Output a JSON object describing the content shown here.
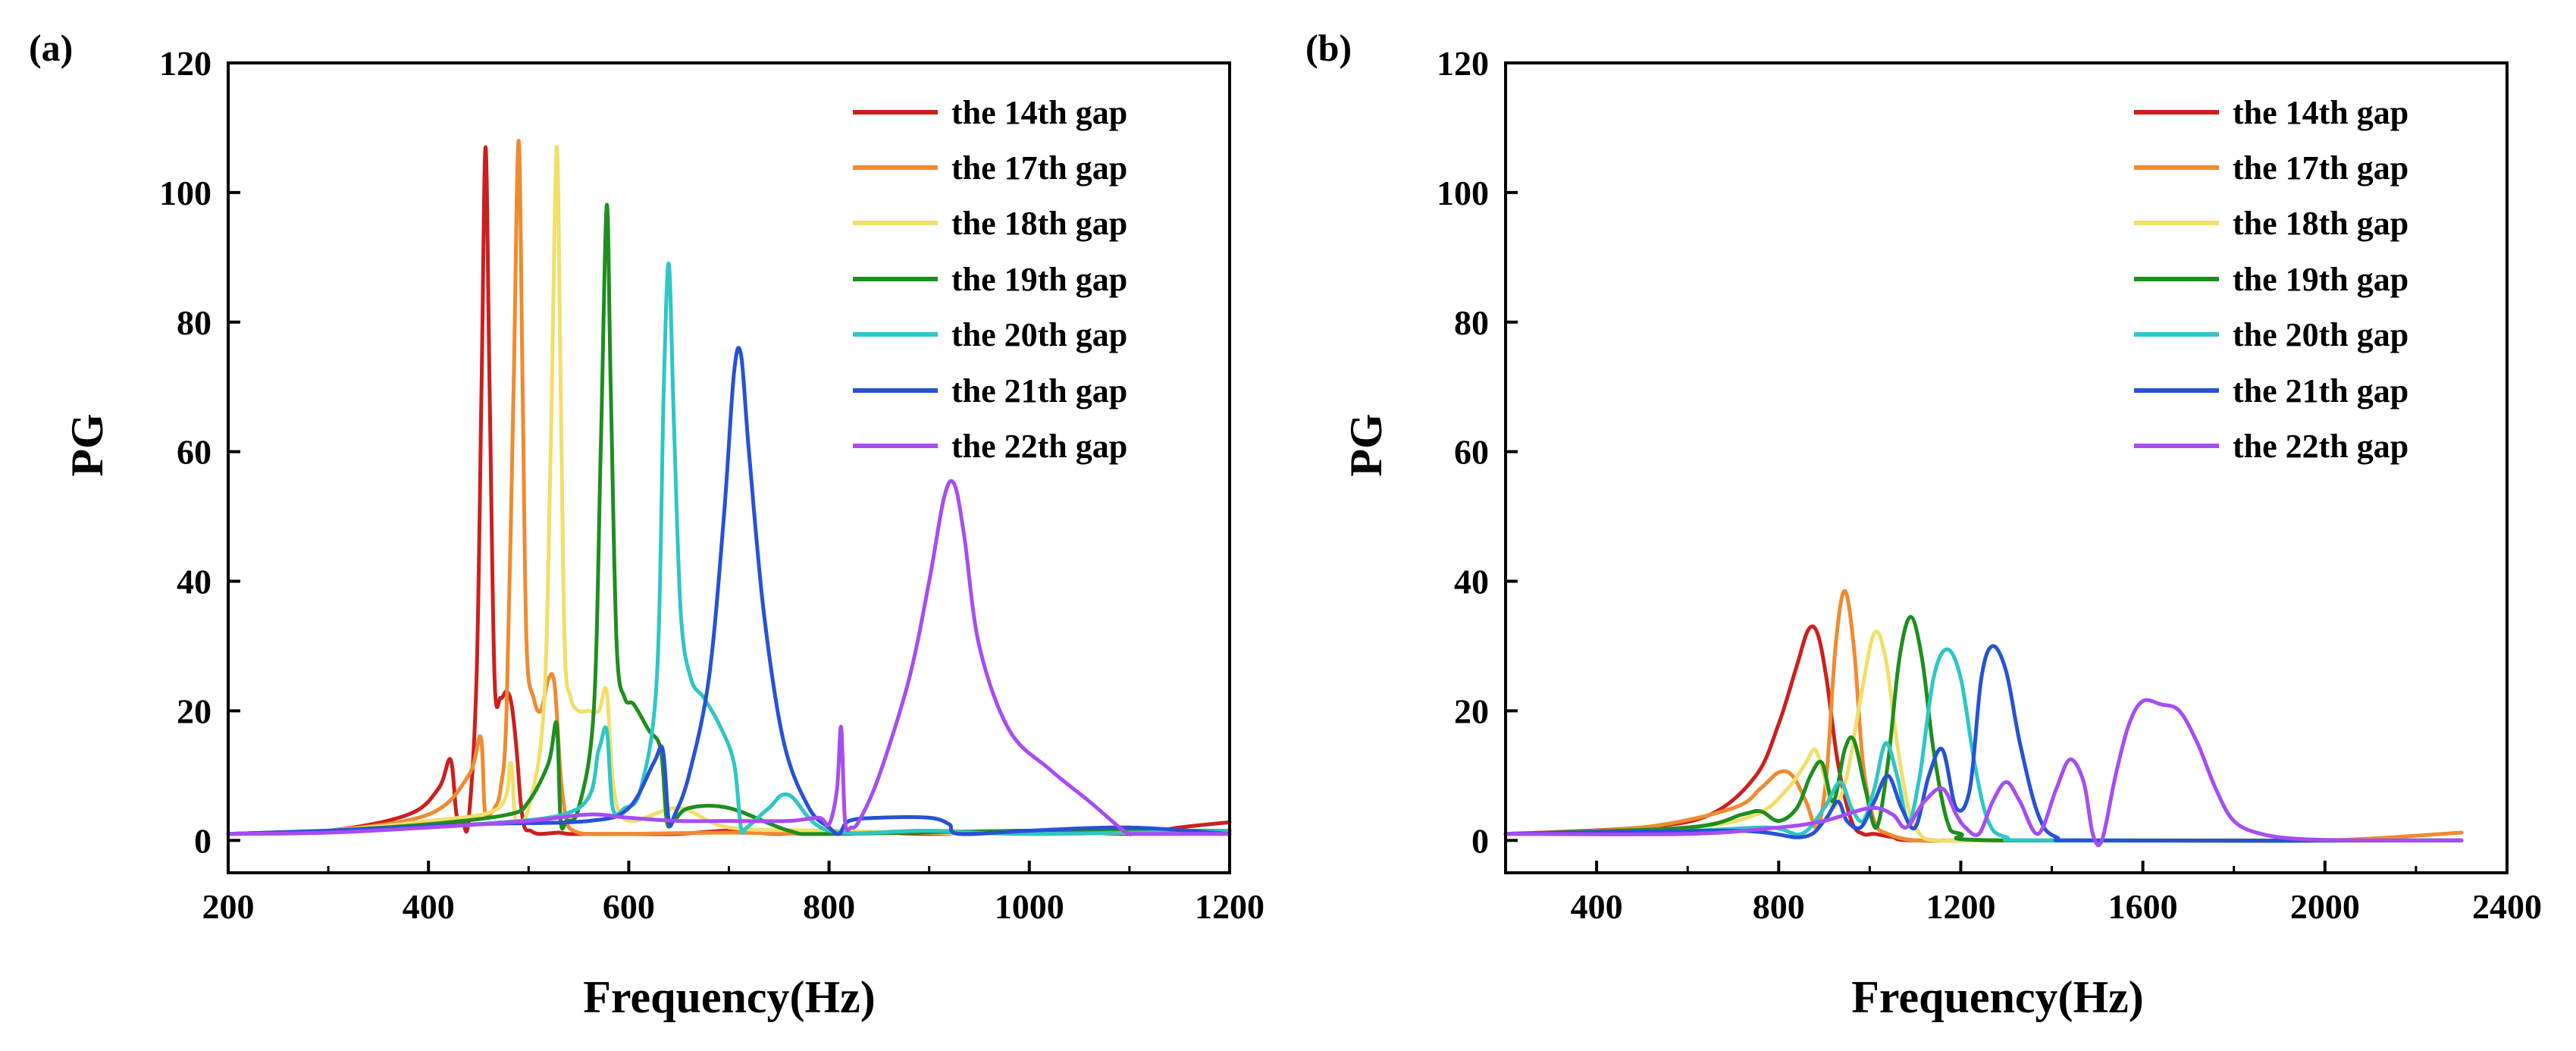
{
  "figure_title": "",
  "chart_data": [
    {
      "type": "line",
      "panel_label": "(a)",
      "xlabel": "Frequency(Hz)",
      "ylabel": "PG",
      "xlim": [
        200,
        1200
      ],
      "ylim": [
        -5,
        120
      ],
      "xticks": [
        200,
        400,
        600,
        800,
        1000,
        1200
      ],
      "xtick_labels": [
        "200",
        "400",
        "600",
        "800",
        "1000",
        "1200"
      ],
      "yticks": [
        0,
        20,
        40,
        60,
        80,
        100,
        120
      ],
      "ytick_labels": [
        "0",
        "20",
        "40",
        "60",
        "80",
        "100",
        "120"
      ],
      "legend_position": "top-right",
      "series": [
        {
          "name": "the 14th gap",
          "color": "#cc1f1f",
          "x": [
            200,
            300,
            380,
            410,
            422,
            428,
            434,
            440,
            448,
            453,
            457,
            461,
            466,
            472,
            478,
            483,
            488,
            492,
            496,
            502,
            510,
            530,
            540,
            560,
            600,
            650,
            700,
            750,
            800,
            900,
            1000,
            1100,
            1150,
            1200
          ],
          "y": [
            1,
            1.5,
            4,
            8,
            12.5,
            4,
            3,
            3,
            25,
            70,
            107,
            70,
            25,
            22,
            23,
            21,
            14,
            6,
            2,
            1.5,
            1,
            1.2,
            1,
            1,
            1,
            1,
            1.5,
            1,
            1.5,
            1,
            1.5,
            1,
            2,
            2.8
          ]
        },
        {
          "name": "the 17th gap",
          "color": "#f08a30",
          "x": [
            200,
            300,
            400,
            440,
            452,
            456,
            460,
            466,
            472,
            478,
            485,
            490,
            494,
            498,
            505,
            512,
            520,
            526,
            532,
            538,
            545,
            560,
            600,
            700,
            800,
            900,
            1000,
            1100,
            1200
          ],
          "y": [
            1,
            1.5,
            4,
            10,
            16,
            5,
            4,
            5,
            8,
            20,
            70,
            108,
            70,
            30,
            22,
            20,
            25,
            24,
            10,
            3,
            1.5,
            1,
            1,
            1.2,
            1,
            1.5,
            1,
            1.2,
            1.5
          ]
        },
        {
          "name": "the 18th gap",
          "color": "#f0df6a",
          "x": [
            200,
            300,
            400,
            470,
            482,
            486,
            490,
            500,
            515,
            522,
            528,
            532,
            536,
            542,
            550,
            560,
            570,
            578,
            585,
            600,
            650,
            700,
            800,
            1000,
            1200
          ],
          "y": [
            1,
            1.5,
            3,
            5,
            12,
            4,
            3,
            5,
            20,
            60,
            107,
            70,
            30,
            22,
            20,
            20,
            20,
            23,
            8,
            3,
            5,
            2,
            1.5,
            1,
            1.5
          ]
        },
        {
          "name": "the 19th gap",
          "color": "#1e8e1e",
          "x": [
            200,
            300,
            400,
            480,
            500,
            520,
            528,
            532,
            538,
            550,
            565,
            572,
            578,
            582,
            588,
            596,
            605,
            620,
            632,
            638,
            645,
            660,
            700,
            760,
            800,
            1000,
            1200
          ],
          "y": [
            1,
            1.5,
            2.5,
            4,
            6,
            12,
            18,
            3,
            3,
            5,
            20,
            60,
            98,
            70,
            30,
            22,
            21,
            17,
            14,
            3,
            3,
            5,
            5,
            1.5,
            1,
            1.5,
            1.5
          ]
        },
        {
          "name": "the 20th gap",
          "color": "#2ec6c6",
          "x": [
            200,
            300,
            450,
            550,
            570,
            578,
            584,
            596,
            612,
            628,
            635,
            640,
            645,
            652,
            662,
            675,
            690,
            705,
            712,
            718,
            740,
            760,
            800,
            900,
            1000,
            1200
          ],
          "y": [
            1,
            1.5,
            2.5,
            5,
            14,
            17,
            5,
            5,
            8,
            25,
            70,
            89,
            65,
            35,
            25,
            22,
            18,
            12,
            2,
            2,
            5,
            7,
            1.5,
            1.5,
            1,
            1.5
          ]
        },
        {
          "name": "the 21th gap",
          "color": "#2752d4",
          "x": [
            200,
            300,
            450,
            560,
            600,
            625,
            634,
            640,
            646,
            660,
            680,
            695,
            705,
            712,
            720,
            735,
            755,
            780,
            800,
            810,
            820,
            850,
            900,
            920,
            930,
            1000,
            1100,
            1200
          ],
          "y": [
            1,
            1.5,
            2.5,
            3,
            5,
            12,
            14,
            3,
            4,
            10,
            25,
            50,
            72,
            75,
            60,
            35,
            15,
            5,
            2,
            1,
            3,
            3.5,
            3.5,
            2.5,
            1,
            1.5,
            2,
            1
          ]
        },
        {
          "name": "the 22th gap",
          "color": "#a64df2",
          "x": [
            200,
            300,
            400,
            500,
            560,
            600,
            650,
            700,
            760,
            790,
            800,
            808,
            812,
            816,
            822,
            830,
            850,
            880,
            900,
            915,
            925,
            935,
            950,
            980,
            1020,
            1060,
            1090,
            1100,
            1105,
            1150,
            1200
          ],
          "y": [
            1,
            1.2,
            2,
            3,
            4,
            3.5,
            3,
            3,
            3,
            3.5,
            2.5,
            8,
            17.5,
            3,
            2,
            3,
            10,
            25,
            40,
            53,
            55,
            47,
            30,
            17,
            11,
            6,
            2,
            1,
            1,
            1,
            1
          ]
        }
      ]
    },
    {
      "type": "line",
      "panel_label": "(b)",
      "xlabel": "Frequency(Hz)",
      "ylabel": "PG",
      "xlim": [
        200,
        2400
      ],
      "ylim": [
        -5,
        120
      ],
      "xticks": [
        400,
        800,
        1200,
        1600,
        2000,
        2400
      ],
      "xtick_labels": [
        "400",
        "800",
        "1200",
        "1600",
        "2000",
        "2400"
      ],
      "yticks": [
        0,
        20,
        40,
        60,
        80,
        100,
        120
      ],
      "ytick_labels": [
        "0",
        "20",
        "40",
        "60",
        "80",
        "100",
        "120"
      ],
      "legend_position": "top-right",
      "series": [
        {
          "name": "the 14th gap",
          "color": "#cc1f1f",
          "x": [
            200,
            500,
            650,
            750,
            800,
            840,
            865,
            885,
            905,
            930,
            960,
            985,
            1010,
            1050,
            1100,
            1400,
            2300
          ],
          "y": [
            1,
            2,
            4,
            10,
            18,
            27,
            32.5,
            32,
            25,
            12,
            3,
            1,
            1,
            0.5,
            0,
            0,
            0
          ]
        },
        {
          "name": "the 17th gap",
          "color": "#f08a30",
          "x": [
            200,
            500,
            700,
            760,
            800,
            830,
            860,
            885,
            905,
            925,
            945,
            965,
            985,
            1010,
            1040,
            1100,
            1200,
            1600,
            2000,
            2300
          ],
          "y": [
            1,
            2,
            5,
            8,
            10.5,
            10,
            6,
            2,
            10,
            30,
            38.5,
            30,
            12,
            3,
            1,
            0,
            0,
            0,
            0,
            1.2
          ]
        },
        {
          "name": "the 18th gap",
          "color": "#f0df6a",
          "x": [
            200,
            600,
            750,
            820,
            860,
            880,
            900,
            920,
            950,
            980,
            1010,
            1035,
            1060,
            1085,
            1110,
            1150,
            1300,
            2300
          ],
          "y": [
            1,
            2,
            4,
            8,
            12,
            14,
            10,
            5,
            10,
            22,
            32,
            28,
            15,
            5,
            1,
            0,
            0,
            0
          ]
        },
        {
          "name": "the 19th gap",
          "color": "#1e8e1e",
          "x": [
            200,
            600,
            720,
            760,
            800,
            840,
            870,
            895,
            920,
            945,
            965,
            990,
            1015,
            1040,
            1065,
            1090,
            1115,
            1140,
            1170,
            1200,
            1300,
            2300
          ],
          "y": [
            1,
            2,
            4,
            4.5,
            3,
            5,
            10,
            12,
            6,
            14,
            15.5,
            8,
            2,
            12,
            28,
            34.5,
            28,
            14,
            3,
            1,
            0,
            0
          ]
        },
        {
          "name": "the 20th gap",
          "color": "#2ec6c6",
          "x": [
            200,
            600,
            780,
            850,
            900,
            935,
            960,
            985,
            1010,
            1035,
            1060,
            1085,
            1110,
            1140,
            1170,
            1200,
            1230,
            1260,
            1300,
            1400,
            2300
          ],
          "y": [
            1,
            1.5,
            2,
            1,
            5,
            9,
            5,
            3,
            8,
            15,
            10,
            3,
            10,
            25,
            29.5,
            25,
            12,
            3,
            0.5,
            0,
            0
          ]
        },
        {
          "name": "the 21th gap",
          "color": "#2752d4",
          "x": [
            200,
            700,
            850,
            900,
            930,
            950,
            980,
            1010,
            1040,
            1070,
            1100,
            1130,
            1160,
            1190,
            1220,
            1245,
            1270,
            1300,
            1330,
            1370,
            1410,
            1500,
            2300
          ],
          "y": [
            1,
            1.5,
            0.5,
            3,
            6,
            3,
            2,
            6,
            10,
            5,
            2,
            10,
            14,
            5,
            8,
            25,
            30,
            26,
            15,
            4,
            0.5,
            0,
            0
          ]
        },
        {
          "name": "the 22th gap",
          "color": "#a64df2",
          "x": [
            200,
            600,
            800,
            900,
            1000,
            1050,
            1080,
            1120,
            1160,
            1190,
            1210,
            1240,
            1270,
            1300,
            1330,
            1370,
            1410,
            1440,
            1470,
            1490,
            1510,
            1540,
            1570,
            1600,
            1640,
            1680,
            1720,
            1760,
            1800,
            1860,
            1950,
            2100,
            2300
          ],
          "y": [
            1,
            1,
            2,
            3,
            5,
            4,
            2,
            6,
            8,
            4,
            2,
            1,
            6,
            9,
            6,
            1,
            8,
            12.5,
            9,
            1,
            0,
            10,
            18,
            21.5,
            21,
            20,
            15,
            8,
            3,
            1,
            0.2,
            0,
            0
          ]
        }
      ]
    }
  ]
}
